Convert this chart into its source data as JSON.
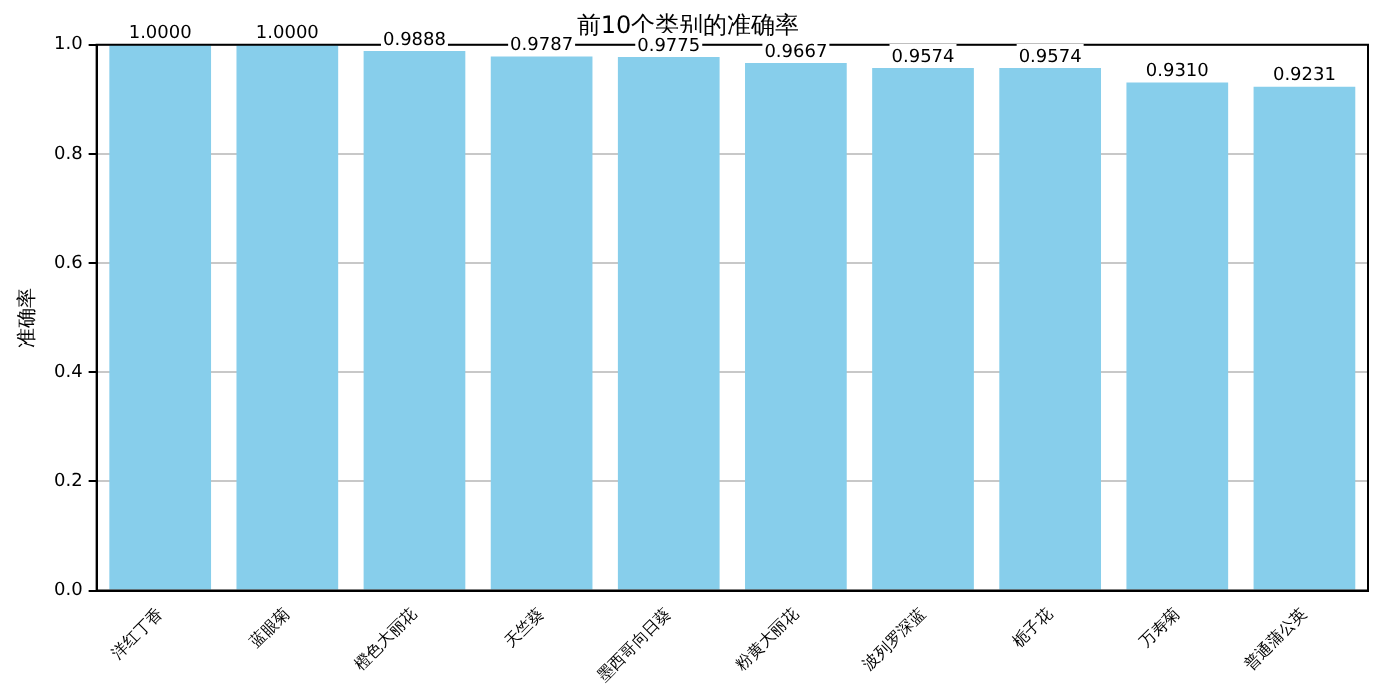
{
  "chart_data": {
    "type": "bar",
    "title": "前10个类别的准确率",
    "ylabel": "准确率",
    "categories": [
      "洋红丁香",
      "蓝眼菊",
      "橙色大丽花",
      "天竺葵",
      "墨西哥向日葵",
      "粉黄大丽花",
      "波列罗深蓝",
      "栀子花",
      "万寿菊",
      "普通蒲公英"
    ],
    "values": [
      1.0,
      1.0,
      0.9888,
      0.9787,
      0.9775,
      0.9667,
      0.9574,
      0.9574,
      0.931,
      0.9231
    ],
    "value_labels": [
      "1.0000",
      "1.0000",
      "0.9888",
      "0.9787",
      "0.9775",
      "0.9667",
      "0.9574",
      "0.9574",
      "0.9310",
      "0.9231"
    ],
    "color": "#87ceeb",
    "ylim": [
      0,
      1
    ],
    "yticks": [
      {
        "value": 0,
        "label": "0.0"
      },
      {
        "value": 0.2,
        "label": "0.2"
      },
      {
        "value": 0.4,
        "label": "0.4"
      },
      {
        "value": 0.6,
        "label": "0.6"
      },
      {
        "value": 0.8,
        "label": "0.8"
      },
      {
        "value": 1,
        "label": "1.0"
      }
    ],
    "grid": "y"
  }
}
